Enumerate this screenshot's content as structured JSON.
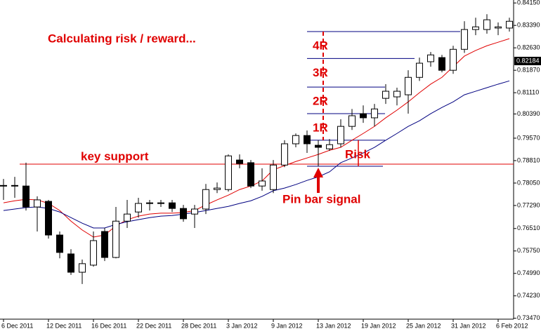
{
  "chart_data": {
    "type": "candlestick",
    "title": "Calculating risk / reward...",
    "categories": [
      "6 Dec 2011",
      null,
      null,
      null,
      "12 Dec 2011",
      null,
      null,
      null,
      "16 Dec 2011",
      null,
      null,
      null,
      "22 Dec 2011",
      null,
      null,
      null,
      "28 Dec 2011",
      null,
      null,
      null,
      "3 Jan 2012",
      null,
      null,
      null,
      "9 Jan 2012",
      null,
      null,
      null,
      "13 Jan 2012",
      null,
      null,
      null,
      "19 Jan 2012",
      null,
      null,
      null,
      "25 Jan 2012",
      null,
      null,
      null,
      "31 Jan 2012",
      null,
      null,
      null,
      "6 Feb 2012",
      null
    ],
    "open": [
      0.7795,
      0.7795,
      0.7795,
      0.7724,
      0.7743,
      0.7629,
      0.7565,
      0.7503,
      0.7527,
      0.7641,
      0.7553,
      0.7676,
      0.7707,
      0.7736,
      0.7736,
      0.7738,
      0.7719,
      0.77,
      0.7717,
      0.7783,
      0.7783,
      0.7883,
      0.7874,
      0.7795,
      0.7783,
      0.7866,
      0.7938,
      0.7966,
      0.7933,
      0.7921,
      0.7938,
      0.7997,
      0.804,
      0.8026,
      0.8092,
      0.8097,
      0.8104,
      0.8163,
      0.8216,
      0.823,
      0.8187,
      0.8258,
      0.8325,
      0.8325,
      0.833,
      0.833
    ],
    "high": [
      0.7819,
      0.7826,
      0.7874,
      0.776,
      0.7748,
      0.7641,
      0.7581,
      0.7546,
      0.7641,
      0.7653,
      0.7724,
      0.7748,
      0.7755,
      0.7748,
      0.7748,
      0.7748,
      0.7731,
      0.7731,
      0.7802,
      0.7807,
      0.7902,
      0.7902,
      0.7883,
      0.7855,
      0.7883,
      0.795,
      0.7973,
      0.7983,
      0.795,
      0.7954,
      0.8021,
      0.8056,
      0.8068,
      0.8073,
      0.814,
      0.8128,
      0.8187,
      0.823,
      0.8249,
      0.8239,
      0.827,
      0.8353,
      0.8365,
      0.8377,
      0.8349,
      0.8365
    ],
    "low": [
      0.7748,
      0.7755,
      0.7712,
      0.7641,
      0.7617,
      0.755,
      0.7494,
      0.7463,
      0.7522,
      0.7541,
      0.755,
      0.7653,
      0.7688,
      0.7712,
      0.7724,
      0.7707,
      0.7674,
      0.7653,
      0.77,
      0.7771,
      0.7776,
      0.7855,
      0.7788,
      0.7779,
      0.7771,
      0.7859,
      0.7926,
      0.7907,
      0.7862,
      0.7914,
      0.7926,
      0.7985,
      0.8009,
      0.7997,
      0.8073,
      0.8068,
      0.804,
      0.8151,
      0.8199,
      0.818,
      0.8175,
      0.8246,
      0.8306,
      0.8311,
      0.8306,
      0.8318
    ],
    "close": [
      0.7797,
      0.7797,
      0.7724,
      0.7748,
      0.7629,
      0.757,
      0.7503,
      0.7532,
      0.761,
      0.7553,
      0.7676,
      0.77,
      0.7736,
      0.7738,
      0.7738,
      0.7719,
      0.7684,
      0.7717,
      0.7783,
      0.7788,
      0.7897,
      0.7871,
      0.7795,
      0.7812,
      0.7866,
      0.7938,
      0.7966,
      0.7938,
      0.7926,
      0.7935,
      0.7997,
      0.8033,
      0.8026,
      0.8056,
      0.8116,
      0.8116,
      0.8163,
      0.8211,
      0.8239,
      0.8187,
      0.8258,
      0.8325,
      0.8334,
      0.8358,
      0.8334,
      0.8353
    ],
    "series": [
      {
        "color": "#e00000",
        "values": [
          0.7738,
          0.7745,
          0.775,
          0.7748,
          0.7736,
          0.7712,
          0.7676,
          0.7646,
          0.7622,
          0.7629,
          0.766,
          0.7681,
          0.7693,
          0.77,
          0.7703,
          0.7703,
          0.7705,
          0.7712,
          0.7731,
          0.7748,
          0.7764,
          0.7783,
          0.7795,
          0.7812,
          0.785,
          0.7864,
          0.7878,
          0.789,
          0.7902,
          0.7916,
          0.7926,
          0.795,
          0.7973,
          0.7997,
          0.8026,
          0.8052,
          0.808,
          0.8111,
          0.814,
          0.8163,
          0.8199,
          0.8235,
          0.8254,
          0.827,
          0.8282,
          0.8294
        ]
      },
      {
        "color": "#000080",
        "values": [
          0.7712,
          0.7717,
          0.7722,
          0.7724,
          0.7719,
          0.7707,
          0.7688,
          0.7669,
          0.7653,
          0.7653,
          0.7665,
          0.7674,
          0.7681,
          0.7688,
          0.7693,
          0.7695,
          0.77,
          0.7705,
          0.7712,
          0.7719,
          0.7726,
          0.7736,
          0.7745,
          0.776,
          0.7779,
          0.7788,
          0.78,
          0.7814,
          0.7826,
          0.7843,
          0.7874,
          0.789,
          0.7907,
          0.7926,
          0.795,
          0.7973,
          0.7997,
          0.8016,
          0.804,
          0.8061,
          0.808,
          0.8104,
          0.8116,
          0.8128,
          0.814,
          0.8151
        ]
      }
    ],
    "ylim": [
      0.7344,
      0.8425
    ],
    "yticks": [
      {
        "value": 0.8415,
        "label": "0.84150"
      },
      {
        "value": 0.8339,
        "label": "0.83390"
      },
      {
        "value": 0.8263,
        "label": "0.82630"
      },
      {
        "value": 0.8187,
        "label": "0.81870"
      },
      {
        "value": 0.8111,
        "label": "0.81110"
      },
      {
        "value": 0.8039,
        "label": "0.80390"
      },
      {
        "value": 0.7957,
        "label": "0.79570"
      },
      {
        "value": 0.7881,
        "label": "0.78810"
      },
      {
        "value": 0.7805,
        "label": "0.78050"
      },
      {
        "value": 0.7729,
        "label": "0.77290"
      },
      {
        "value": 0.7651,
        "label": "0.76510"
      },
      {
        "value": 0.7575,
        "label": "0.75750"
      },
      {
        "value": 0.7499,
        "label": "0.74990"
      },
      {
        "value": 0.7423,
        "label": "0.74230"
      },
      {
        "value": 0.7347,
        "label": "0.73470"
      }
    ],
    "last_price": {
      "value": 0.82184,
      "label": "0.82184"
    },
    "support": {
      "value": 0.7869,
      "label": "key support"
    },
    "entry": 0.795,
    "stop": {
      "value": 0.7862,
      "label": "Risk"
    },
    "targets": [
      {
        "value": 0.804,
        "label": "1R"
      },
      {
        "value": 0.813,
        "label": "2R"
      },
      {
        "value": 0.8227,
        "label": "3R"
      },
      {
        "value": 0.8318,
        "label": "4R"
      }
    ],
    "signal_label": "Pin bar signal"
  }
}
